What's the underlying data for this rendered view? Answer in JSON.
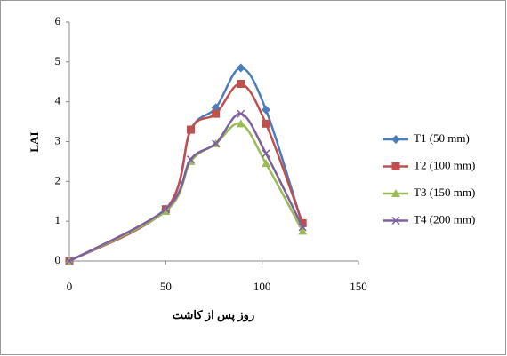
{
  "chart_data": {
    "type": "line",
    "x": [
      0,
      50,
      63,
      76,
      89,
      102,
      121
    ],
    "series": [
      {
        "name": "T1 (50 mm)",
        "color": "#4a7ebb",
        "marker": "diamond",
        "values": [
          0,
          1.3,
          3.3,
          3.85,
          4.85,
          3.8,
          0.9
        ]
      },
      {
        "name": "T2 (100 mm)",
        "color": "#c0504d",
        "marker": "square",
        "values": [
          0,
          1.3,
          3.3,
          3.7,
          4.45,
          3.45,
          0.95
        ]
      },
      {
        "name": "T3 (150 mm)",
        "color": "#9bbb59",
        "marker": "triangle",
        "values": [
          0,
          1.25,
          2.5,
          2.95,
          3.45,
          2.45,
          0.75
        ]
      },
      {
        "name": "T4 (200 mm)",
        "color": "#7d60a0",
        "marker": "x",
        "values": [
          0,
          1.3,
          2.55,
          2.95,
          3.7,
          2.7,
          0.85
        ]
      }
    ],
    "xlim": [
      0,
      150
    ],
    "xticks": [
      0,
      50,
      100,
      150
    ],
    "ylim": [
      0,
      6
    ],
    "yticks": [
      0,
      1,
      2,
      3,
      4,
      5,
      6
    ],
    "x_label": "روز پس از کاشت",
    "y_label": "LAI",
    "legend": "right"
  }
}
